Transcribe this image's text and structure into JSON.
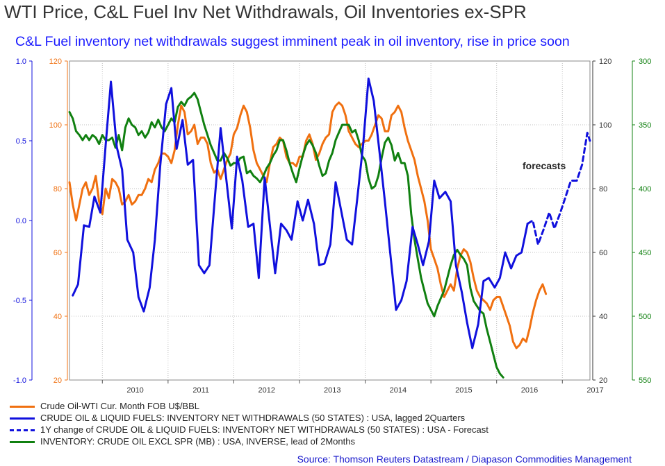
{
  "title": "WTI Price, C&L Fuel Inv Net Withdrawals, Oil Inventories ex-SPR",
  "subtitle": "C&L Fuel inventory net withdrawals suggest imminent peak in oil inventory, rise in price soon",
  "source": "Source: Thomson Reuters Datastream / Diapason Commodities Management",
  "colors": {
    "orange": "#f07010",
    "blue": "#1010dd",
    "green": "#108010",
    "grid": "#c0c0c0"
  },
  "chart_data": {
    "type": "line",
    "x_axis": {
      "min": 2009.5,
      "max": 2017.42,
      "ticks": [
        "2010",
        "2011",
        "2012",
        "2013",
        "2014",
        "2015",
        "2016",
        "2017"
      ]
    },
    "axes": {
      "left_blue": {
        "min": -1.0,
        "max": 1.0,
        "ticks": [
          "1.0",
          "0.5",
          "0.0",
          "-0.5",
          "-1.0"
        ]
      },
      "left_orange": {
        "min": 20,
        "max": 120,
        "ticks": [
          "120",
          "100",
          "80",
          "60",
          "40",
          "20"
        ]
      },
      "right_black": {
        "min": 20,
        "max": 120,
        "ticks": [
          "120",
          "100",
          "80",
          "60",
          "40",
          "20"
        ]
      },
      "right_green": {
        "min": 300,
        "max": 550,
        "inverted": true,
        "ticks": [
          "300",
          "350",
          "400",
          "450",
          "500",
          "550"
        ]
      }
    },
    "annotation": "forecasts",
    "series": [
      {
        "name": "Crude Oil-WTI Cur. Month FOB U$/BBL",
        "axis": "left_orange",
        "style": "solid",
        "x": [
          2009.5,
          2009.55,
          2009.6,
          2009.65,
          2009.7,
          2009.75,
          2009.8,
          2009.85,
          2009.9,
          2009.95,
          2010.0,
          2010.05,
          2010.1,
          2010.15,
          2010.2,
          2010.25,
          2010.3,
          2010.35,
          2010.4,
          2010.45,
          2010.5,
          2010.55,
          2010.6,
          2010.65,
          2010.7,
          2010.75,
          2010.8,
          2010.85,
          2010.9,
          2010.95,
          2011.0,
          2011.05,
          2011.1,
          2011.15,
          2011.2,
          2011.25,
          2011.3,
          2011.35,
          2011.4,
          2011.45,
          2011.5,
          2011.55,
          2011.6,
          2011.65,
          2011.7,
          2011.75,
          2011.8,
          2011.85,
          2011.9,
          2011.95,
          2012.0,
          2012.05,
          2012.1,
          2012.15,
          2012.2,
          2012.25,
          2012.3,
          2012.35,
          2012.4,
          2012.45,
          2012.5,
          2012.55,
          2012.6,
          2012.65,
          2012.7,
          2012.75,
          2012.8,
          2012.85,
          2012.9,
          2012.95,
          2013.0,
          2013.05,
          2013.1,
          2013.15,
          2013.2,
          2013.25,
          2013.3,
          2013.35,
          2013.4,
          2013.45,
          2013.5,
          2013.55,
          2013.6,
          2013.65,
          2013.7,
          2013.75,
          2013.8,
          2013.85,
          2013.9,
          2013.95,
          2014.0,
          2014.05,
          2014.1,
          2014.15,
          2014.2,
          2014.25,
          2014.3,
          2014.35,
          2014.4,
          2014.45,
          2014.5,
          2014.55,
          2014.6,
          2014.65,
          2014.7,
          2014.75,
          2014.8,
          2014.85,
          2014.9,
          2014.95,
          2015.0,
          2015.05,
          2015.1,
          2015.15,
          2015.2,
          2015.25,
          2015.3,
          2015.35,
          2015.4,
          2015.45,
          2015.5,
          2015.55,
          2015.6,
          2015.65,
          2015.7,
          2015.75,
          2015.8,
          2015.85,
          2015.9,
          2015.95,
          2016.0,
          2016.05,
          2016.1,
          2016.15,
          2016.2,
          2016.25,
          2016.3,
          2016.35,
          2016.4,
          2016.45,
          2016.5,
          2016.55,
          2016.6,
          2016.65,
          2016.7,
          2016.75
        ],
        "y": [
          82,
          75,
          70,
          75,
          80,
          82,
          78,
          80,
          84,
          76,
          72,
          80,
          77,
          83,
          82,
          80,
          75,
          76,
          78,
          75,
          76,
          78,
          78,
          80,
          83,
          82,
          86,
          88,
          91,
          91,
          90,
          88,
          92,
          100,
          106,
          104,
          97,
          98,
          100,
          94,
          96,
          96,
          94,
          88,
          85,
          86,
          83,
          86,
          89,
          91,
          97,
          99,
          103,
          106,
          104,
          99,
          92,
          88,
          86,
          84,
          82,
          88,
          93,
          94,
          96,
          95,
          90,
          88,
          88,
          87,
          90,
          90,
          95,
          97,
          94,
          89,
          91,
          94,
          96,
          97,
          104,
          106,
          107,
          106,
          103,
          98,
          96,
          94,
          93,
          94,
          95,
          95,
          97,
          100,
          103,
          102,
          98,
          98,
          103,
          104,
          106,
          104,
          99,
          95,
          92,
          89,
          84,
          80,
          76,
          70,
          61,
          58,
          55,
          50,
          46,
          48,
          50,
          48,
          55,
          59,
          61,
          60,
          57,
          52,
          48,
          46,
          45,
          44,
          42,
          45,
          46,
          46,
          43,
          40,
          37,
          32,
          30,
          31,
          33,
          32,
          36,
          41,
          45,
          48,
          50,
          47
        ]
      },
      {
        "name": "CRUDE OIL & LIQUID FUELS: INVENTORY NET WITHDRAWALS (50 STATES) : USA, lagged 2Quarters",
        "axis": "left_blue",
        "style": "solid",
        "x": [
          2009.55,
          2009.63,
          2009.72,
          2009.8,
          2009.88,
          2009.97,
          2010.05,
          2010.13,
          2010.22,
          2010.3,
          2010.38,
          2010.47,
          2010.55,
          2010.63,
          2010.72,
          2010.8,
          2010.88,
          2010.97,
          2011.05,
          2011.13,
          2011.22,
          2011.3,
          2011.38,
          2011.47,
          2011.55,
          2011.63,
          2011.72,
          2011.8,
          2011.88,
          2011.97,
          2012.05,
          2012.13,
          2012.22,
          2012.3,
          2012.38,
          2012.47,
          2012.55,
          2012.63,
          2012.72,
          2012.8,
          2012.88,
          2012.97,
          2013.05,
          2013.13,
          2013.22,
          2013.3,
          2013.38,
          2013.47,
          2013.55,
          2013.63,
          2013.72,
          2013.8,
          2013.88,
          2013.97,
          2014.05,
          2014.13,
          2014.22,
          2014.3,
          2014.38,
          2014.47,
          2014.55,
          2014.63,
          2014.72,
          2014.8,
          2014.88,
          2014.97,
          2015.05,
          2015.13,
          2015.22,
          2015.3,
          2015.38,
          2015.47,
          2015.55,
          2015.63,
          2015.72,
          2015.8,
          2015.88,
          2015.97,
          2016.05,
          2016.13,
          2016.22,
          2016.3,
          2016.38,
          2016.47
        ],
        "y": [
          -0.47,
          -0.4,
          -0.03,
          -0.04,
          0.15,
          0.05,
          0.47,
          0.87,
          0.46,
          0.32,
          -0.12,
          -0.2,
          -0.48,
          -0.57,
          -0.42,
          -0.12,
          0.34,
          0.73,
          0.83,
          0.45,
          0.63,
          0.35,
          0.38,
          -0.28,
          -0.33,
          -0.28,
          0.18,
          0.58,
          0.28,
          -0.05,
          0.4,
          0.25,
          -0.04,
          -0.02,
          -0.36,
          0.27,
          -0.03,
          -0.33,
          -0.02,
          -0.06,
          -0.12,
          0.12,
          0.0,
          0.13,
          -0.02,
          -0.28,
          -0.27,
          -0.15,
          0.24,
          0.07,
          -0.12,
          -0.15,
          0.14,
          0.48,
          0.89,
          0.75,
          0.42,
          0.12,
          -0.2,
          -0.56,
          -0.5,
          -0.38,
          -0.04,
          -0.15,
          -0.28,
          -0.13,
          0.25,
          0.14,
          0.18,
          0.12,
          -0.28,
          -0.45,
          -0.64,
          -0.8,
          -0.65,
          -0.38,
          -0.36,
          -0.42,
          -0.36,
          -0.2,
          -0.3,
          -0.22,
          -0.2,
          -0.02
        ]
      },
      {
        "name": "1Y change of CRUDE OIL & LIQUID FUELS: INVENTORY NET WITHDRAWALS (50 STATES) : USA - Forecast",
        "axis": "left_blue",
        "style": "dashed",
        "x": [
          2016.47,
          2016.55,
          2016.63,
          2016.72,
          2016.8,
          2016.88,
          2016.97,
          2017.05,
          2017.13,
          2017.22,
          2017.3,
          2017.38,
          2017.42
        ],
        "y": [
          -0.02,
          0.0,
          -0.15,
          -0.05,
          0.05,
          -0.05,
          0.05,
          0.15,
          0.25,
          0.25,
          0.35,
          0.55,
          0.5
        ]
      },
      {
        "name": "INVENTORY: CRUDE OIL EXCL SPR (MB) : USA, INVERSE, lead of 2Months",
        "axis": "right_green",
        "style": "solid",
        "x": [
          2009.5,
          2009.55,
          2009.6,
          2009.65,
          2009.7,
          2009.75,
          2009.8,
          2009.85,
          2009.9,
          2009.95,
          2010.0,
          2010.05,
          2010.1,
          2010.15,
          2010.2,
          2010.25,
          2010.3,
          2010.35,
          2010.4,
          2010.45,
          2010.5,
          2010.55,
          2010.6,
          2010.65,
          2010.7,
          2010.75,
          2010.8,
          2010.85,
          2010.9,
          2010.95,
          2011.0,
          2011.05,
          2011.1,
          2011.15,
          2011.2,
          2011.25,
          2011.3,
          2011.35,
          2011.4,
          2011.45,
          2011.5,
          2011.55,
          2011.6,
          2011.65,
          2011.7,
          2011.75,
          2011.8,
          2011.85,
          2011.9,
          2011.95,
          2012.0,
          2012.05,
          2012.1,
          2012.15,
          2012.2,
          2012.25,
          2012.3,
          2012.35,
          2012.4,
          2012.45,
          2012.5,
          2012.55,
          2012.6,
          2012.65,
          2012.7,
          2012.75,
          2012.8,
          2012.85,
          2012.9,
          2012.95,
          2013.0,
          2013.05,
          2013.1,
          2013.15,
          2013.2,
          2013.25,
          2013.3,
          2013.35,
          2013.4,
          2013.45,
          2013.5,
          2013.55,
          2013.6,
          2013.65,
          2013.7,
          2013.75,
          2013.8,
          2013.85,
          2013.9,
          2013.95,
          2014.0,
          2014.05,
          2014.1,
          2014.15,
          2014.2,
          2014.25,
          2014.3,
          2014.35,
          2014.4,
          2014.45,
          2014.5,
          2014.55,
          2014.6,
          2014.65,
          2014.7,
          2014.75,
          2014.8,
          2014.85,
          2014.9,
          2014.95,
          2015.0,
          2015.05,
          2015.1,
          2015.15,
          2015.2,
          2015.25,
          2015.3,
          2015.35,
          2015.4,
          2015.45,
          2015.5,
          2015.55,
          2015.6,
          2015.65,
          2015.7,
          2015.75,
          2015.8,
          2015.85,
          2015.9,
          2015.95,
          2016.0,
          2016.05,
          2016.1
        ],
        "y": [
          340,
          345,
          355,
          358,
          362,
          358,
          362,
          358,
          360,
          365,
          358,
          362,
          362,
          360,
          368,
          358,
          370,
          352,
          345,
          350,
          352,
          358,
          355,
          360,
          356,
          348,
          352,
          346,
          352,
          355,
          350,
          345,
          348,
          336,
          332,
          335,
          330,
          328,
          325,
          330,
          340,
          350,
          358,
          366,
          372,
          378,
          378,
          372,
          376,
          382,
          380,
          380,
          376,
          375,
          388,
          386,
          390,
          392,
          395,
          390,
          384,
          380,
          374,
          370,
          362,
          362,
          370,
          380,
          388,
          395,
          384,
          374,
          366,
          362,
          366,
          372,
          382,
          390,
          388,
          378,
          372,
          362,
          356,
          350,
          350,
          350,
          356,
          354,
          362,
          374,
          378,
          392,
          400,
          398,
          390,
          376,
          364,
          360,
          366,
          378,
          372,
          380,
          380,
          390,
          420,
          440,
          455,
          470,
          480,
          490,
          495,
          500,
          492,
          486,
          480,
          470,
          460,
          452,
          448,
          452,
          455,
          460,
          478,
          488,
          492,
          496,
          498,
          510,
          520,
          530,
          540,
          545,
          548
        ]
      }
    ]
  }
}
